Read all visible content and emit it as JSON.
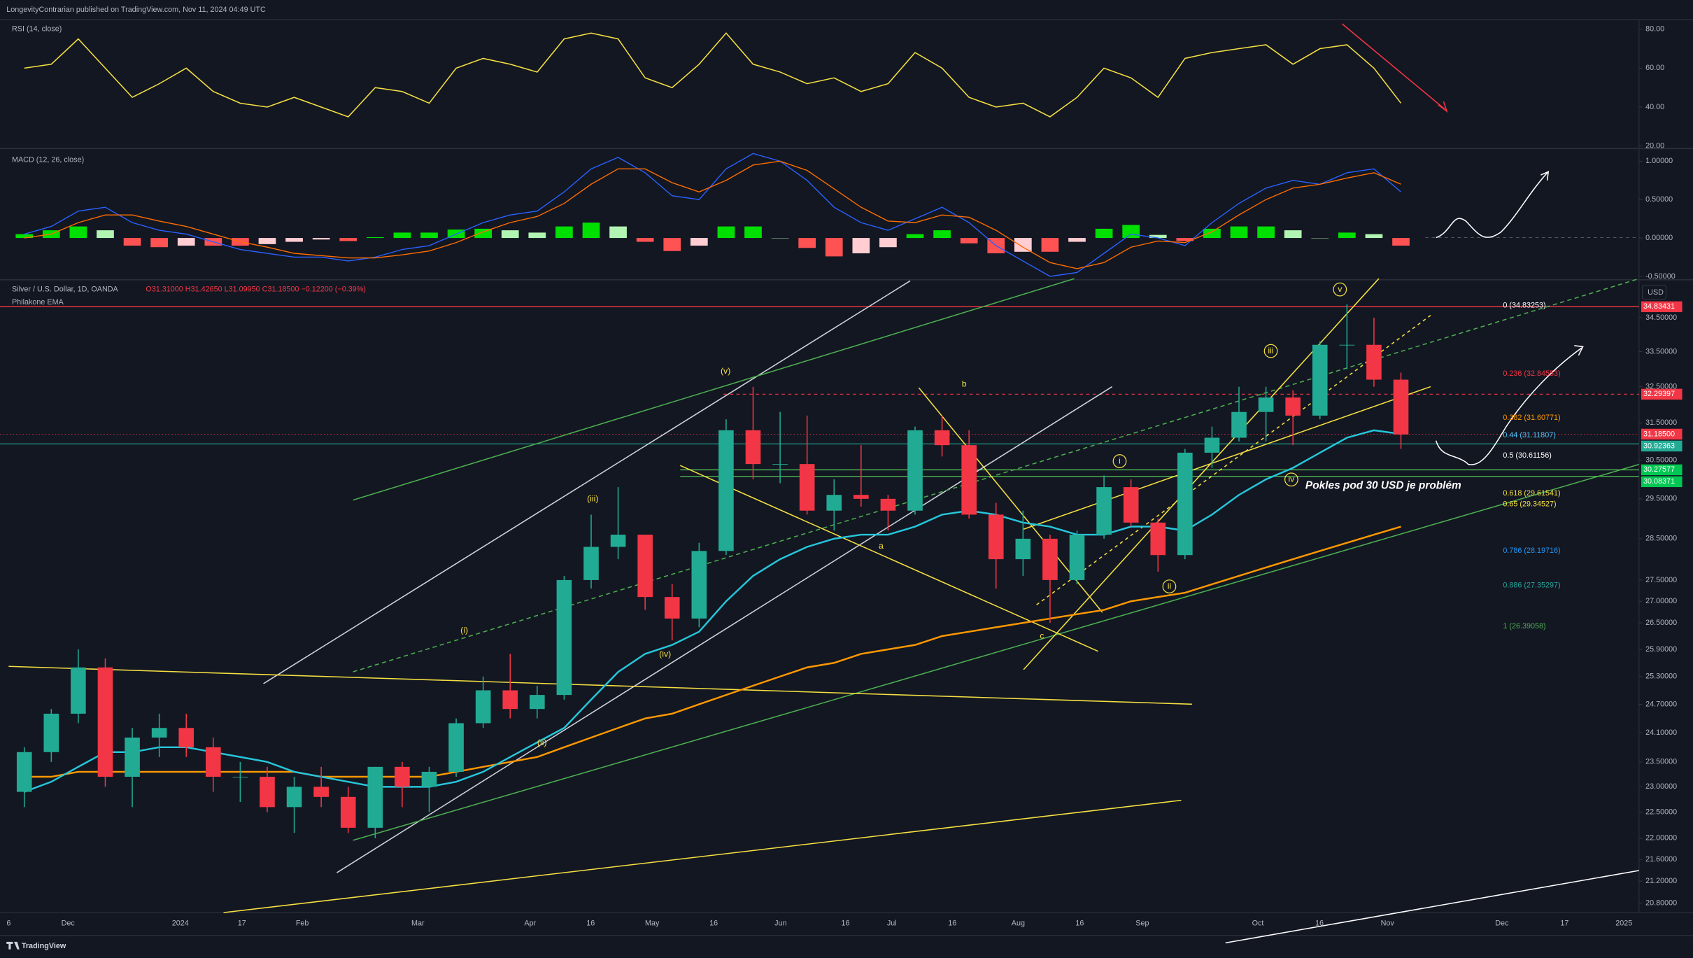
{
  "header": {
    "publisher": "LongevityContrarian published on TradingView.com, Nov 11, 2024 04:49 UTC"
  },
  "rsi": {
    "label": "RSI (14, close)",
    "color": "#f5e042",
    "ylim": [
      19,
      85
    ],
    "yticks": [
      {
        "value": 80,
        "label": "80.00"
      },
      {
        "value": 60,
        "label": "60.00"
      },
      {
        "value": 40,
        "label": "40.00"
      },
      {
        "value": 20,
        "label": "20.00"
      }
    ],
    "values": [
      60,
      62,
      75,
      60,
      45,
      52,
      60,
      48,
      42,
      40,
      45,
      40,
      35,
      50,
      48,
      42,
      60,
      65,
      62,
      58,
      75,
      78,
      75,
      55,
      50,
      62,
      78,
      62,
      58,
      52,
      55,
      48,
      52,
      68,
      60,
      45,
      40,
      42,
      35,
      45,
      60,
      55,
      45,
      65,
      68,
      70,
      72,
      62,
      70,
      72,
      60,
      42
    ]
  },
  "macd": {
    "label": "MACD (12, 26, close)",
    "ylim": [
      -0.53,
      1.13
    ],
    "yticks": [
      {
        "value": 1,
        "label": "1.00000"
      },
      {
        "value": 0.5,
        "label": "0.50000"
      },
      {
        "value": 0,
        "label": "0.00000"
      },
      {
        "value": -0.5,
        "label": "-0.50000"
      }
    ],
    "macd": {
      "color": "#2962ff",
      "values": [
        0.05,
        0.15,
        0.35,
        0.4,
        0.2,
        0.1,
        0.05,
        -0.05,
        -0.15,
        -0.2,
        -0.25,
        -0.25,
        -0.3,
        -0.25,
        -0.15,
        -0.1,
        0.05,
        0.2,
        0.3,
        0.35,
        0.6,
        0.9,
        1.05,
        0.85,
        0.55,
        0.5,
        0.9,
        1.1,
        1.0,
        0.75,
        0.4,
        0.2,
        0.1,
        0.25,
        0.4,
        0.2,
        -0.1,
        -0.3,
        -0.5,
        -0.45,
        -0.2,
        0.05,
        0.0,
        -0.1,
        0.2,
        0.45,
        0.65,
        0.75,
        0.7,
        0.85,
        0.9,
        0.6
      ]
    },
    "signal": {
      "color": "#ff6d00",
      "values": [
        0.0,
        0.05,
        0.2,
        0.3,
        0.3,
        0.22,
        0.15,
        0.05,
        -0.05,
        -0.12,
        -0.2,
        -0.23,
        -0.26,
        -0.26,
        -0.22,
        -0.17,
        -0.06,
        0.08,
        0.2,
        0.28,
        0.45,
        0.7,
        0.9,
        0.9,
        0.72,
        0.6,
        0.75,
        0.95,
        1.0,
        0.88,
        0.64,
        0.4,
        0.22,
        0.2,
        0.3,
        0.27,
        0.1,
        -0.12,
        -0.32,
        -0.4,
        -0.32,
        -0.12,
        -0.04,
        -0.06,
        0.08,
        0.3,
        0.5,
        0.65,
        0.7,
        0.78,
        0.85,
        0.7
      ]
    },
    "histogram": {
      "colors": [
        "#00e000",
        "#b2f5b2",
        "#ff5252",
        "#ffcdd2"
      ],
      "values": [
        0.05,
        0.1,
        0.15,
        0.1,
        -0.1,
        -0.12,
        -0.1,
        -0.1,
        -0.1,
        -0.08,
        -0.05,
        -0.02,
        -0.04,
        0.01,
        0.07,
        0.07,
        0.11,
        0.12,
        0.1,
        0.07,
        0.15,
        0.2,
        0.15,
        -0.05,
        -0.17,
        -0.1,
        0.15,
        0.15,
        0.0,
        -0.13,
        -0.24,
        -0.2,
        -0.12,
        0.05,
        0.1,
        -0.07,
        -0.2,
        -0.18,
        -0.18,
        -0.05,
        0.12,
        0.17,
        0.04,
        -0.04,
        0.12,
        0.15,
        0.15,
        0.1,
        0.0,
        0.07,
        0.05,
        -0.1
      ]
    }
  },
  "price": {
    "symbol": "Silver / U.S. Dollar, 1D, OANDA",
    "ohlc": "O31.31000 H31.42650 L31.09950 C31.18500 −0.12200 (−0.39%)",
    "indicator": "Philakone EMA",
    "currency": "USD",
    "scale": "log",
    "ylim": [
      20.63,
      35.55
    ],
    "up_color": "#22ab94",
    "down_color": "#f23645",
    "yticks": [
      {
        "value": 34.5,
        "label": "34.50000"
      },
      {
        "value": 33.5,
        "label": "33.50000"
      },
      {
        "value": 32.5,
        "label": "32.50000"
      },
      {
        "value": 31.5,
        "label": "31.50000"
      },
      {
        "value": 30.5,
        "label": "30.50000"
      },
      {
        "value": 29.5,
        "label": "29.50000"
      },
      {
        "value": 28.5,
        "label": "28.50000"
      },
      {
        "value": 27.5,
        "label": "27.50000"
      },
      {
        "value": 27,
        "label": "27.00000"
      },
      {
        "value": 26.5,
        "label": "26.50000"
      },
      {
        "value": 25.9,
        "label": "25.90000"
      },
      {
        "value": 25.3,
        "label": "25.30000"
      },
      {
        "value": 24.7,
        "label": "24.70000"
      },
      {
        "value": 24.1,
        "label": "24.10000"
      },
      {
        "value": 23.5,
        "label": "23.50000"
      },
      {
        "value": 23,
        "label": "23.00000"
      },
      {
        "value": 22.5,
        "label": "22.50000"
      },
      {
        "value": 22,
        "label": "22.00000"
      },
      {
        "value": 21.6,
        "label": "21.60000"
      },
      {
        "value": 21.2,
        "label": "21.20000"
      },
      {
        "value": 20.8,
        "label": "20.80000"
      }
    ],
    "xticks": [
      "6",
      "Dec",
      "2024",
      "17",
      "Feb",
      "Mar",
      "Apr",
      "16",
      "May",
      "16",
      "Jun",
      "16",
      "Jul",
      "16",
      "Aug",
      "16",
      "Sep",
      "Oct",
      "16",
      "Nov",
      "Dec",
      "17",
      "2025"
    ],
    "candles": {
      "open": [
        22.9,
        23.7,
        24.5,
        25.5,
        23.2,
        24.0,
        24.2,
        23.8,
        23.2,
        23.2,
        22.6,
        23.0,
        22.8,
        22.2,
        23.4,
        23.0,
        23.3,
        24.3,
        25.0,
        24.6,
        24.9,
        27.5,
        28.3,
        28.6,
        27.1,
        26.6,
        28.2,
        31.3,
        30.4,
        30.4,
        29.2,
        29.6,
        29.5,
        29.2,
        31.3,
        30.9,
        29.1,
        28.0,
        28.5,
        27.5,
        28.6,
        29.8,
        28.9,
        28.1,
        30.7,
        31.1,
        31.8,
        32.2,
        31.7,
        33.7,
        33.7,
        32.7
      ],
      "high": [
        23.8,
        24.6,
        25.9,
        25.7,
        24.2,
        24.5,
        24.5,
        24.0,
        23.5,
        23.4,
        23.2,
        23.4,
        23.0,
        23.4,
        23.5,
        23.4,
        24.4,
        25.3,
        25.8,
        25.1,
        27.6,
        29.1,
        29.8,
        28.6,
        27.4,
        28.4,
        31.6,
        32.5,
        31.8,
        31.7,
        30.0,
        30.9,
        29.6,
        31.4,
        31.7,
        31.3,
        29.4,
        29.2,
        28.6,
        28.7,
        30.1,
        30.0,
        29.0,
        30.8,
        31.4,
        32.5,
        32.5,
        32.4,
        33.8,
        34.9,
        34.5,
        32.9
      ],
      "low": [
        22.6,
        23.5,
        24.3,
        23.0,
        22.6,
        23.6,
        23.6,
        22.9,
        22.7,
        22.5,
        22.1,
        22.6,
        22.1,
        22.0,
        22.6,
        22.5,
        23.2,
        24.2,
        24.4,
        24.4,
        24.8,
        27.3,
        28.0,
        26.8,
        26.1,
        26.4,
        28.1,
        30.0,
        29.9,
        29.1,
        28.7,
        29.3,
        28.7,
        29.1,
        30.6,
        29.0,
        27.3,
        27.6,
        26.5,
        27.4,
        28.5,
        28.8,
        27.7,
        28.0,
        30.3,
        31.0,
        31.0,
        30.9,
        31.6,
        33.0,
        32.5,
        30.8
      ],
      "close": [
        23.7,
        24.5,
        25.5,
        23.2,
        24.0,
        24.2,
        23.8,
        23.2,
        23.2,
        22.6,
        23.0,
        22.8,
        22.2,
        23.4,
        23.0,
        23.3,
        24.3,
        25.0,
        24.6,
        24.9,
        27.5,
        28.3,
        28.6,
        27.1,
        26.6,
        28.2,
        31.3,
        30.4,
        30.4,
        29.2,
        29.6,
        29.5,
        29.2,
        31.3,
        30.9,
        29.1,
        28.0,
        28.5,
        27.5,
        28.6,
        29.8,
        28.9,
        28.1,
        30.7,
        31.1,
        31.8,
        32.2,
        31.7,
        33.7,
        33.7,
        32.7,
        31.185
      ]
    },
    "ema_fast": {
      "color": "#26c6da",
      "values": [
        22.9,
        23.1,
        23.4,
        23.7,
        23.7,
        23.8,
        23.8,
        23.7,
        23.6,
        23.5,
        23.3,
        23.2,
        23.1,
        23.0,
        23.0,
        23.0,
        23.1,
        23.3,
        23.6,
        23.9,
        24.2,
        24.8,
        25.4,
        25.8,
        26.0,
        26.3,
        27.0,
        27.6,
        28.0,
        28.3,
        28.5,
        28.6,
        28.6,
        28.8,
        29.1,
        29.2,
        29.1,
        28.9,
        28.8,
        28.6,
        28.6,
        28.8,
        28.8,
        28.7,
        29.1,
        29.6,
        30.0,
        30.3,
        30.7,
        31.1,
        31.3,
        31.2
      ]
    },
    "ema_slow": {
      "color": "#ff9800",
      "values": [
        23.2,
        23.2,
        23.3,
        23.3,
        23.3,
        23.3,
        23.3,
        23.3,
        23.3,
        23.3,
        23.3,
        23.2,
        23.2,
        23.2,
        23.2,
        23.2,
        23.3,
        23.4,
        23.5,
        23.6,
        23.8,
        24.0,
        24.2,
        24.4,
        24.5,
        24.7,
        24.9,
        25.1,
        25.3,
        25.5,
        25.6,
        25.8,
        25.9,
        26.0,
        26.2,
        26.3,
        26.4,
        26.5,
        26.6,
        26.7,
        26.8,
        27.0,
        27.1,
        27.2,
        27.4,
        27.6,
        27.8,
        28.0,
        28.2,
        28.4,
        28.6,
        28.8
      ]
    },
    "fib": [
      {
        "label": "0 (34.83253)",
        "color": "#ffffff"
      },
      {
        "label": "0.236 (32.84553)",
        "color": "#f23645"
      },
      {
        "label": "0.382 (31.60771)",
        "color": "#ff9800"
      },
      {
        "label": "0.44 (31.11807)",
        "color": "#4fc3f7"
      },
      {
        "label": "0.5 (30.61156)",
        "color": "#ffffff"
      },
      {
        "label": "0.618 (29.61541)",
        "color": "#f5e042"
      },
      {
        "label": "0.65 (29.34527)",
        "color": "#f5e042"
      },
      {
        "label": "0.786 (28.19716)",
        "color": "#2196f3"
      },
      {
        "label": "0.886 (27.35297)",
        "color": "#26a69a"
      },
      {
        "label": "1 (26.39058)",
        "color": "#4caf50"
      }
    ],
    "price_tags": [
      {
        "label": "34.83431",
        "color": "#f23645"
      },
      {
        "label": "32.29397",
        "color": "#f23645"
      },
      {
        "label": "31.18500",
        "color": "#f23645"
      },
      {
        "label": "30.92363",
        "color": "#22ab94"
      },
      {
        "label": "30.27577",
        "color": "#00c853"
      },
      {
        "label": "30.08371",
        "color": "#00c853"
      }
    ],
    "waves": [
      "(v)",
      "(iii)",
      "(i)",
      "(ii)",
      "(iv)",
      "b",
      "a",
      "c",
      "v",
      "iii",
      "i",
      "ii",
      "iv"
    ],
    "note": "Pokles pod 30 USD je problém"
  },
  "footer": {
    "brand": "TradingView"
  }
}
